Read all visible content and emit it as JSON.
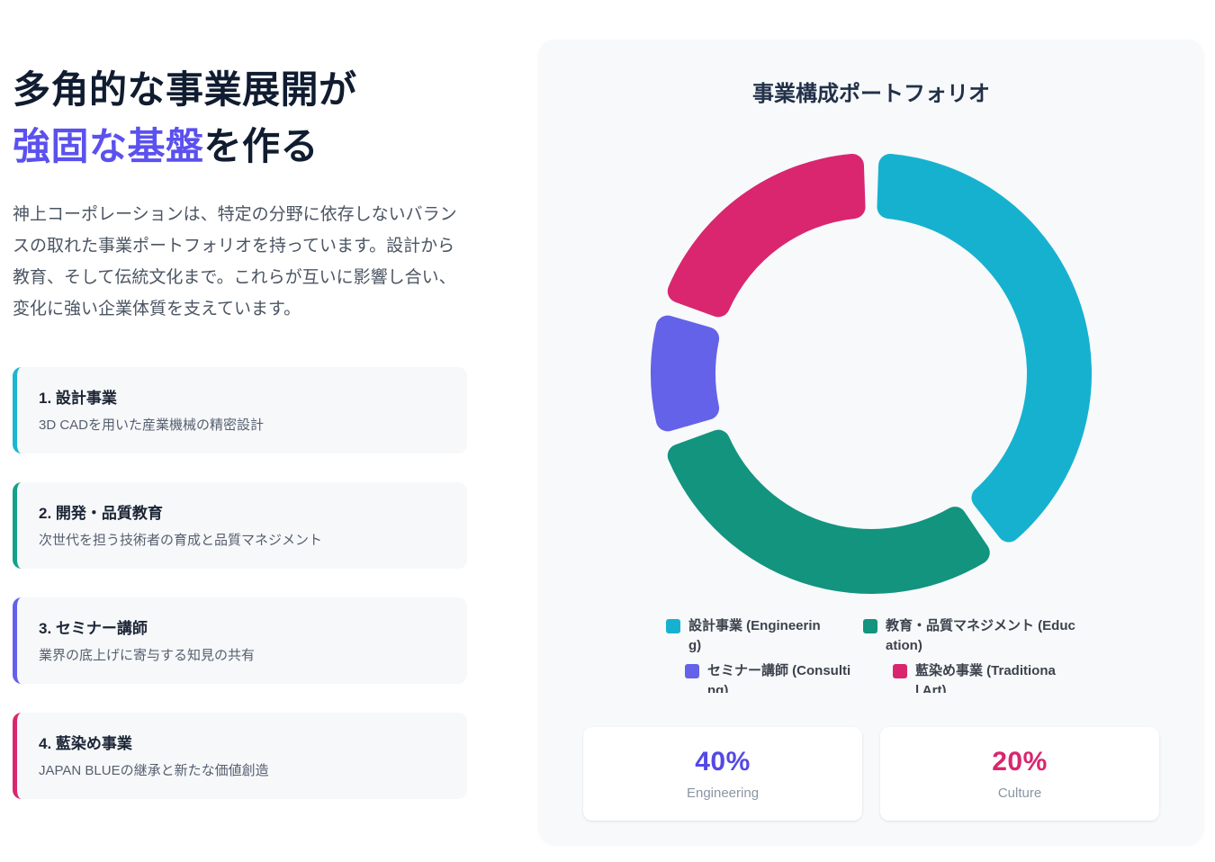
{
  "left": {
    "heading": {
      "line1": "多角的な事業展開が",
      "highlight": "強固な基盤",
      "rest": "を作る",
      "highlight_color": "#5b51ee",
      "text_color": "#101c30"
    },
    "paragraph": "神上コーポレーションは、特定の分野に依存しないバランスの取れた事業ポートフォリオを持っています。設計から教育、そして伝統文化まで。これらが互いに影響し合い、変化に強い企業体質を支えています。",
    "items": [
      {
        "title": "1. 設計事業",
        "desc": "3D CADを用いた産業機械の精密設計",
        "color": "#1cb5d2"
      },
      {
        "title": "2. 開発・品質教育",
        "desc": "次世代を担う技術者の育成と品質マネジメント",
        "color": "#14a08a"
      },
      {
        "title": "3. セミナー講師",
        "desc": "業界の底上げに寄与する知見の共有",
        "color": "#6560ea"
      },
      {
        "title": "4. 藍染め事業",
        "desc": "JAPAN BLUEの継承と新たな価値創造",
        "color": "#d9266f"
      }
    ]
  },
  "chart_card": {
    "title": "事業構成ポートフォリオ",
    "legend": [
      {
        "label": "設計事業 (Engineering)",
        "color": "#17b1d0"
      },
      {
        "label": "教育・品質マネジメント (Education)",
        "color": "#12947f"
      },
      {
        "label": "セミナー講師 (Consulting)",
        "color": "#6462e9"
      },
      {
        "label": "藍染め事業 (Traditional Art)",
        "color": "#d9266f"
      }
    ],
    "stats": [
      {
        "value": "40%",
        "label": "Engineering",
        "color": "#5449e6"
      },
      {
        "value": "20%",
        "label": "Culture",
        "color": "#d9266f"
      }
    ]
  },
  "chart_data": {
    "type": "pie",
    "subtype": "doughnut",
    "title": "事業構成ポートフォリオ",
    "categories": [
      "設計事業 (Engineering)",
      "教育・品質マネジメント (Education)",
      "セミナー講師 (Consulting)",
      "藍染め事業 (Traditional Art)"
    ],
    "values": [
      40,
      30,
      10,
      20
    ],
    "unit": "%",
    "colors": [
      "#17b1d0",
      "#12947f",
      "#6462e9",
      "#d9266f"
    ],
    "start_angle_deg": 0,
    "direction": "clockwise",
    "cutout_pct": 70,
    "segment_gap_deg": 2,
    "corner_radius": 13,
    "legend_position": "bottom"
  }
}
